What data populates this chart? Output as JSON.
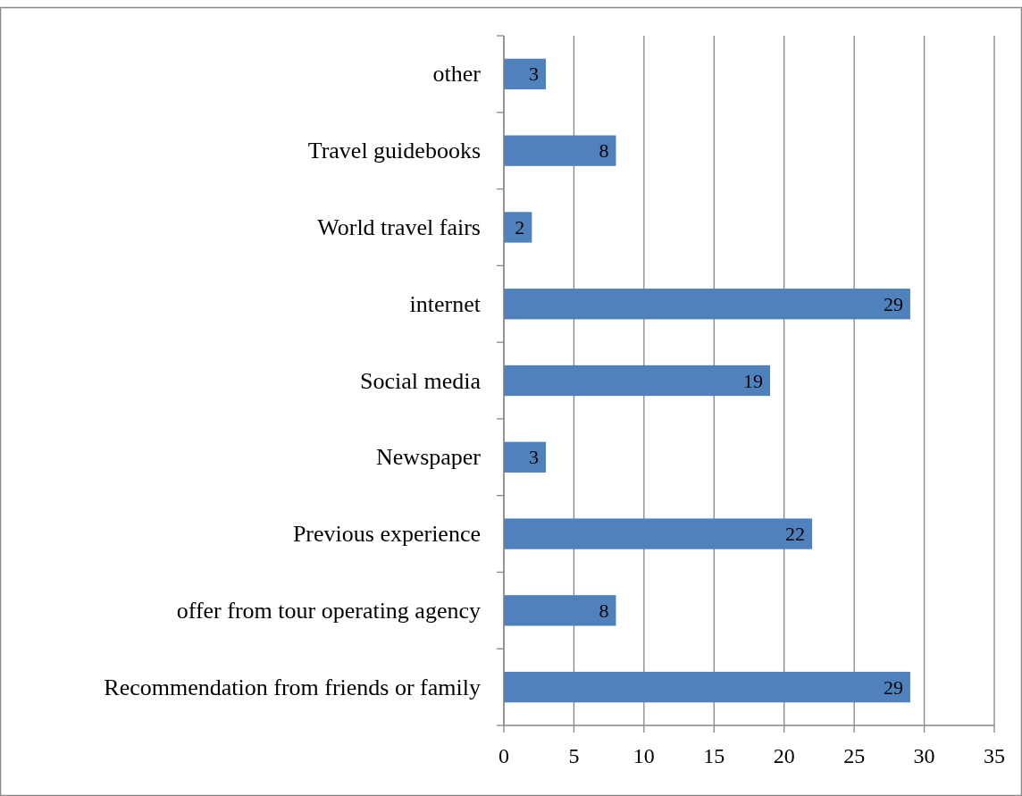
{
  "chart_data": {
    "type": "bar",
    "orientation": "horizontal",
    "categories": [
      "other",
      "Travel guidebooks",
      "World travel fairs",
      "internet",
      "Social media",
      "Newspaper",
      "Previous experience",
      "offer from tour operating agency",
      "Recommendation from friends or family"
    ],
    "values": [
      3,
      8,
      2,
      29,
      19,
      3,
      22,
      8,
      29
    ],
    "color": "#4f81bd",
    "xlim": [
      0,
      35
    ],
    "xticks": [
      0,
      5,
      10,
      15,
      20,
      25,
      30,
      35
    ],
    "grid": "x",
    "data_labels": true
  }
}
